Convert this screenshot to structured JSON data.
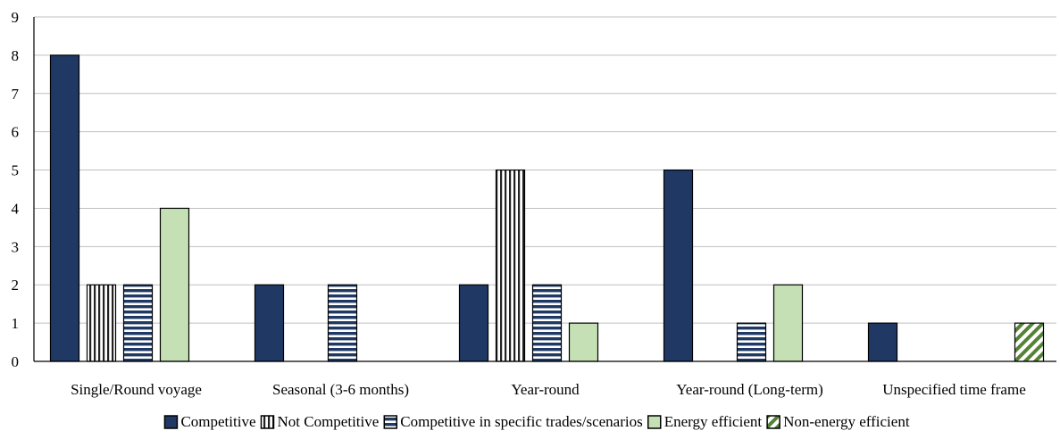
{
  "chart_data": {
    "type": "bar",
    "categories": [
      "Single/Round voyage",
      "Seasonal (3-6 months)",
      "Year-round",
      "Year-round (Long-term)",
      "Unspecified time frame"
    ],
    "series": [
      {
        "name": "Competitive",
        "values": [
          8,
          2,
          2,
          5,
          1
        ],
        "color": "#1f3864",
        "pattern": "solid"
      },
      {
        "name": "Not Competitive",
        "values": [
          2,
          0,
          5,
          0,
          0
        ],
        "color": "#ffffff",
        "pattern": "vertical-stripes"
      },
      {
        "name": "Competitive in specific trades/scenarios",
        "values": [
          2,
          2,
          2,
          1,
          0
        ],
        "color": "#1f3864",
        "pattern": "horizontal-stripes"
      },
      {
        "name": "Energy efficient",
        "values": [
          4,
          0,
          1,
          2,
          0
        ],
        "color": "#c5e0b4",
        "pattern": "solid"
      },
      {
        "name": "Non-energy efficient",
        "values": [
          0,
          0,
          0,
          0,
          1
        ],
        "color": "#548235",
        "pattern": "diagonal-stripes"
      }
    ],
    "ylim": [
      0,
      9
    ],
    "yticks": [
      0,
      1,
      2,
      3,
      4,
      5,
      6,
      7,
      8,
      9
    ],
    "grid": true,
    "legend_position": "bottom"
  }
}
